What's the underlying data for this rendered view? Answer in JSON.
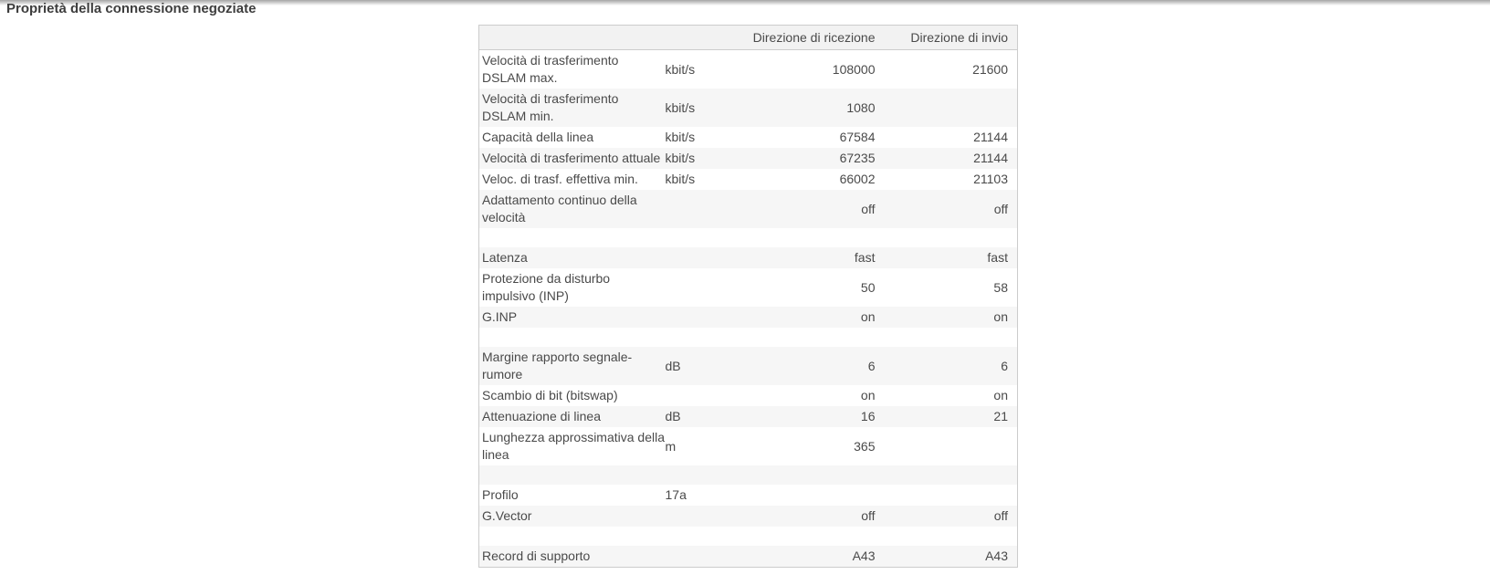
{
  "page": {
    "title": "Proprietà della connessione negoziate"
  },
  "colors": {
    "border": "#cccccc",
    "header_bg": "#f2f2f2",
    "stripe": "#f6f6f6",
    "text": "#4a4a4a",
    "title": "#3d3d3d",
    "shadow_top": "#a5a5a5"
  },
  "table": {
    "columns": {
      "receive": "Direzione di ricezione",
      "send": "Direzione di invio"
    },
    "rows": [
      {
        "label": "Velocità di trasferimento DSLAM max.",
        "unit": "kbit/s",
        "receive": "108000",
        "send": "21600"
      },
      {
        "label": "Velocità di trasferimento DSLAM min.",
        "unit": "kbit/s",
        "receive": "1080",
        "send": ""
      },
      {
        "label": "Capacità della linea",
        "unit": "kbit/s",
        "receive": "67584",
        "send": "21144"
      },
      {
        "label": "Velocità di trasferimento attuale",
        "unit": "kbit/s",
        "receive": "67235",
        "send": "21144"
      },
      {
        "label": "Veloc. di trasf. effettiva min.",
        "unit": "kbit/s",
        "receive": "66002",
        "send": "21103"
      },
      {
        "label": "Adattamento continuo della velocità",
        "unit": "",
        "receive": "off",
        "send": "off"
      },
      {
        "spacer": true
      },
      {
        "label": "Latenza",
        "unit": "",
        "receive": "fast",
        "send": "fast"
      },
      {
        "label": "Protezione da disturbo impulsivo (INP)",
        "unit": "",
        "receive": "50",
        "send": "58"
      },
      {
        "label": "G.INP",
        "unit": "",
        "receive": "on",
        "send": "on"
      },
      {
        "spacer": true
      },
      {
        "label": "Margine rapporto segnale-rumore",
        "unit": "dB",
        "receive": "6",
        "send": "6"
      },
      {
        "label": "Scambio di bit (bitswap)",
        "unit": "",
        "receive": "on",
        "send": "on"
      },
      {
        "label": "Attenuazione di linea",
        "unit": "dB",
        "receive": "16",
        "send": "21"
      },
      {
        "label": "Lunghezza approssimativa della linea",
        "unit": "m",
        "receive": "365",
        "send": ""
      },
      {
        "spacer": true
      },
      {
        "label": "Profilo",
        "unit": "17a",
        "receive": "",
        "send": ""
      },
      {
        "label": "G.Vector",
        "unit": "",
        "receive": "off",
        "send": "off"
      },
      {
        "spacer": true
      },
      {
        "label": "Record di supporto",
        "unit": "",
        "receive": "A43",
        "send": "A43"
      }
    ]
  }
}
